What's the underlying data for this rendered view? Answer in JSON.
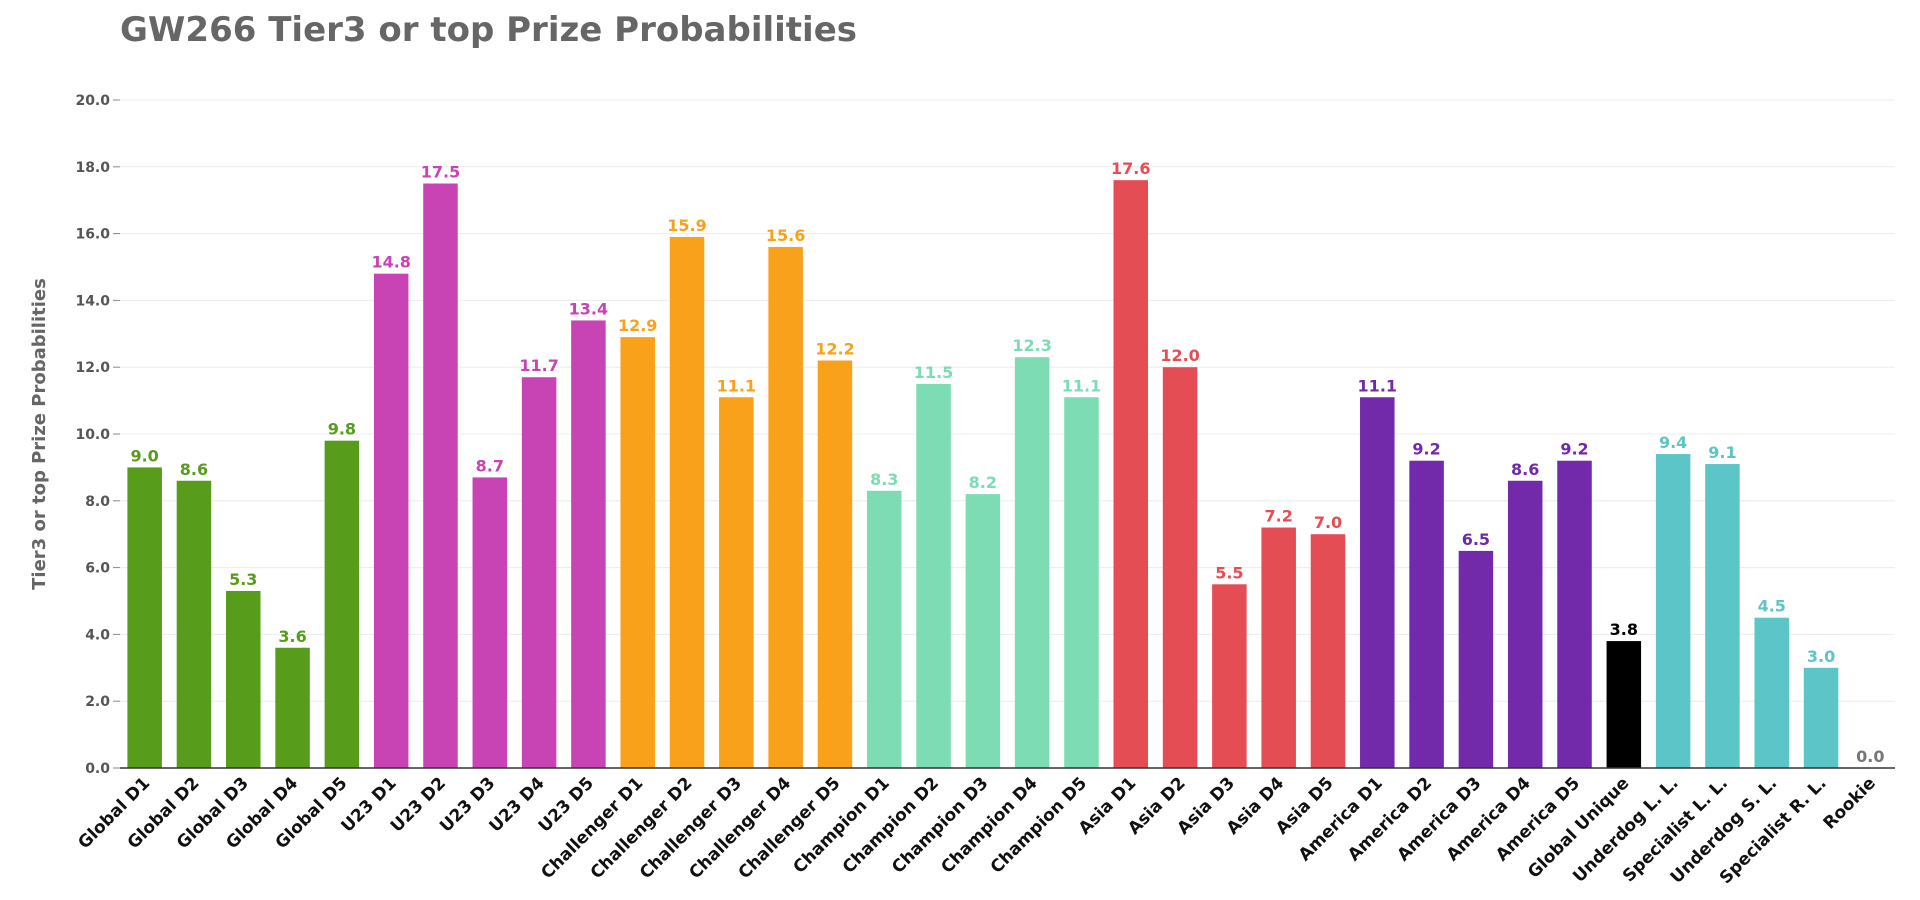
{
  "chart_data": {
    "type": "bar",
    "title": "GW266 Tier3 or top Prize Probabilities",
    "xlabel": "",
    "ylabel": "Tier3 or top Prize Probabilities",
    "ylim": [
      0,
      20
    ],
    "y_ticks": [
      "0.0",
      "2.0",
      "4.0",
      "6.0",
      "8.0",
      "10.0",
      "12.0",
      "14.0",
      "16.0",
      "18.0",
      "20.0"
    ],
    "grid": true,
    "legend": "none",
    "categories": [
      "Global D1",
      "Global D2",
      "Global D3",
      "Global D4",
      "Global D5",
      "U23 D1",
      "U23 D2",
      "U23 D3",
      "U23 D4",
      "U23 D5",
      "Challenger D1",
      "Challenger D2",
      "Challenger D3",
      "Challenger D4",
      "Challenger D5",
      "Champion D1",
      "Champion D2",
      "Champion D3",
      "Champion D4",
      "Champion D5",
      "Asia D1",
      "Asia D2",
      "Asia D3",
      "Asia D4",
      "Asia D5",
      "America D1",
      "America D2",
      "America D3",
      "America D4",
      "America D5",
      "Global Unique",
      "Underdog L. L.",
      "Specialist L. L.",
      "Underdog S. L.",
      "Specialist R. L.",
      "Rookie"
    ],
    "values": [
      9.0,
      8.6,
      5.3,
      3.6,
      9.8,
      14.8,
      17.5,
      8.7,
      11.7,
      13.4,
      12.9,
      15.9,
      11.1,
      15.6,
      12.2,
      8.3,
      11.5,
      8.2,
      12.3,
      11.1,
      17.6,
      12.0,
      5.5,
      7.2,
      7.0,
      11.1,
      9.2,
      6.5,
      8.6,
      9.2,
      3.8,
      9.4,
      9.1,
      4.5,
      3.0,
      0.0
    ],
    "value_labels": [
      "9.0",
      "8.6",
      "5.3",
      "3.6",
      "9.8",
      "14.8",
      "17.5",
      "8.7",
      "11.7",
      "13.4",
      "12.9",
      "15.9",
      "11.1",
      "15.6",
      "12.2",
      "8.3",
      "11.5",
      "8.2",
      "12.3",
      "11.1",
      "17.6",
      "12.0",
      "5.5",
      "7.2",
      "7.0",
      "11.1",
      "9.2",
      "6.5",
      "8.6",
      "9.2",
      "3.8",
      "9.4",
      "9.1",
      "4.5",
      "3.0",
      "0.0"
    ],
    "colors": [
      "#589c1c",
      "#589c1c",
      "#589c1c",
      "#589c1c",
      "#589c1c",
      "#c844b4",
      "#c844b4",
      "#c844b4",
      "#c844b4",
      "#c844b4",
      "#f9a11b",
      "#f9a11b",
      "#f9a11b",
      "#f9a11b",
      "#f9a11b",
      "#7ddcb4",
      "#7ddcb4",
      "#7ddcb4",
      "#7ddcb4",
      "#7ddcb4",
      "#e44d54",
      "#e44d54",
      "#e44d54",
      "#e44d54",
      "#e44d54",
      "#7229aa",
      "#7229aa",
      "#7229aa",
      "#7229aa",
      "#7229aa",
      "#000000",
      "#5bc5c8",
      "#5bc5c8",
      "#5bc5c8",
      "#5bc5c8",
      "#777777"
    ]
  }
}
